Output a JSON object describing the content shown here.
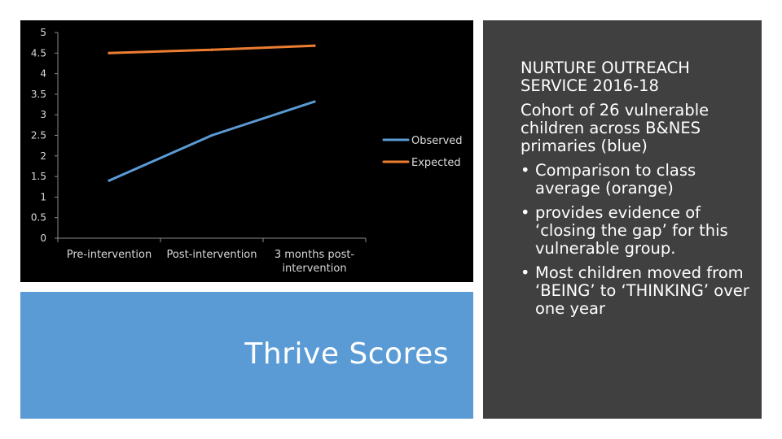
{
  "slide": {
    "caption": "Thrive Scores",
    "heading": "NURTURE OUTREACH SERVICE  2016-18",
    "intro": "Cohort of 26 vulnerable children across B&NES primaries  (blue)",
    "bullets": [
      "Comparison to class average (orange)",
      " provides evidence of ‘closing the gap’ for this vulnerable group.",
      "Most children moved from ‘BEING’ to ‘THINKING’ over one year"
    ],
    "bullet_glyph": "•"
  },
  "chart_data": {
    "type": "line",
    "categories": [
      "Pre-intervention",
      "Post-intervention",
      "3 months post-intervention"
    ],
    "category_labels": [
      [
        "Pre-intervention"
      ],
      [
        "Post-intervention"
      ],
      [
        "3 months post-",
        "intervention"
      ]
    ],
    "series": [
      {
        "name": "Observed",
        "values": [
          1.4,
          2.5,
          3.32
        ],
        "color": "#5b9bd5"
      },
      {
        "name": "Expected",
        "values": [
          4.5,
          4.58,
          4.68
        ],
        "color": "#ed7d31"
      }
    ],
    "ylim": [
      0,
      5
    ],
    "yticks": [
      0,
      0.5,
      1,
      1.5,
      2,
      2.5,
      3,
      3.5,
      4,
      4.5,
      5
    ],
    "ytick_labels": [
      "0",
      "0.5",
      "1",
      "1.5",
      "2",
      "2.5",
      "3",
      "3.5",
      "4",
      "4.5",
      "5"
    ],
    "grid": false,
    "legend": "right",
    "title": "",
    "xlabel": "",
    "ylabel": ""
  },
  "colors": {
    "chart_background": "#000000",
    "axis": "#8c8c8c",
    "text_on_dark": "#d9d9d9",
    "caption_panel": "#5b9bd5",
    "text_panel": "#404040"
  }
}
